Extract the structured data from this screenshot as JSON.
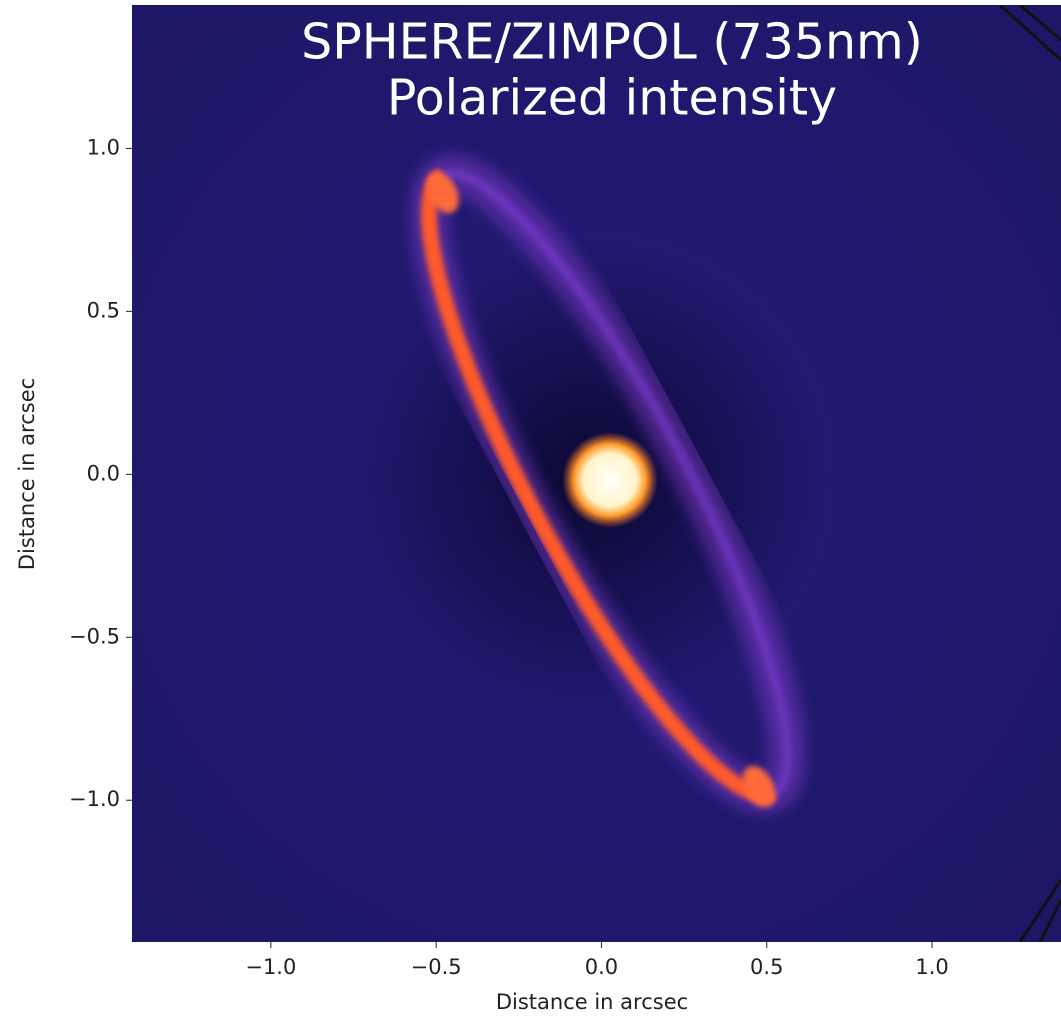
{
  "chart_data": {
    "type": "image",
    "title": "SPHERE/ZIMPOL (735nm)",
    "subtitle": "Polarized intensity",
    "x_label": "Distance in arcsec",
    "y_label": "Distance in arcsec",
    "xlim": [
      -1.42,
      1.39
    ],
    "ylim": [
      -1.435,
      1.44
    ],
    "xticks": [
      {
        "value": -1.0,
        "label": "−1.0"
      },
      {
        "value": -0.5,
        "label": "−0.5"
      },
      {
        "value": 0,
        "label": "0.0"
      },
      0.5,
      {
        "value": 1.0,
        "label": "1.0"
      }
    ],
    "yticks": [
      {
        "value": -1.0,
        "label": "−1.0"
      },
      {
        "value": -0.5,
        "label": "−0.5"
      },
      {
        "value": 0,
        "label": "0.0"
      },
      0.5,
      {
        "value": 1.0,
        "label": "1.0"
      }
    ]
  }
}
